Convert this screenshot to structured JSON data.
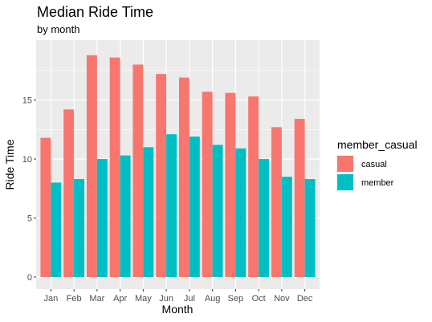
{
  "chart_data": {
    "type": "bar",
    "title": "Median Ride Time",
    "subtitle": "by month",
    "xlabel": "Month",
    "ylabel": "Ride Time",
    "categories": [
      "Jan",
      "Feb",
      "Mar",
      "Apr",
      "May",
      "Jun",
      "Jul",
      "Aug",
      "Sep",
      "Oct",
      "Nov",
      "Dec"
    ],
    "series": [
      {
        "name": "casual",
        "color": "#F8766D",
        "values": [
          11.8,
          14.2,
          18.8,
          18.6,
          18.0,
          17.2,
          16.9,
          15.7,
          15.6,
          15.3,
          12.7,
          13.4
        ]
      },
      {
        "name": "member",
        "color": "#00BFC4",
        "values": [
          8.0,
          8.3,
          10.0,
          10.3,
          11.0,
          12.1,
          11.9,
          11.2,
          10.9,
          10.0,
          8.5,
          8.3
        ]
      }
    ],
    "ylim": [
      0,
      19.8
    ],
    "yticks": [
      0,
      5,
      10,
      15
    ],
    "grid": true,
    "legend": {
      "title": "member_casual",
      "position": "right"
    },
    "panel_background": "#EBEBEB",
    "gridline_color": "#FFFFFF"
  }
}
